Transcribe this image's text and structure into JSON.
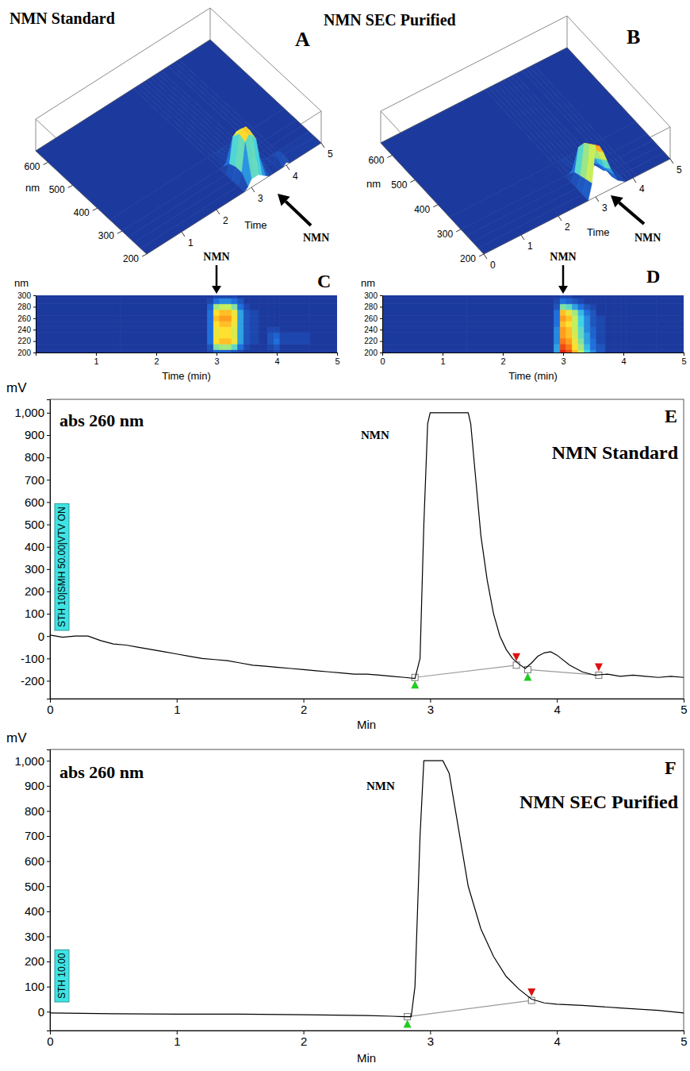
{
  "chart_data": [
    {
      "type": "surface3d",
      "title": "NMN Standard",
      "panel": "A",
      "peak_label": "NMN",
      "x_label": "Time",
      "y_label": "nm",
      "x": [
        0,
        2.8,
        2.9,
        3.0,
        3.1,
        3.2,
        3.3,
        3.4,
        3.5,
        3.6,
        3.8,
        3.9,
        4.0,
        4.1,
        5
      ],
      "y": [
        200,
        225,
        250,
        275,
        300,
        350,
        650
      ],
      "z": [
        [
          0,
          0,
          0.05,
          0.15,
          0.15,
          0.15,
          0.1,
          0.05,
          0,
          0,
          0,
          0,
          0.05,
          0,
          0
        ],
        [
          0,
          0,
          0.2,
          0.7,
          0.8,
          0.75,
          0.65,
          0.3,
          0.1,
          0.05,
          0,
          0.1,
          0.15,
          0.05,
          0
        ],
        [
          0,
          0,
          0.2,
          0.75,
          0.8,
          0.8,
          0.7,
          0.3,
          0.1,
          0.05,
          0,
          0,
          0,
          0,
          0
        ],
        [
          0,
          0,
          0.15,
          0.6,
          0.65,
          0.65,
          0.55,
          0.25,
          0.05,
          0,
          0,
          0,
          0,
          0,
          0
        ],
        [
          0,
          0,
          0,
          0.05,
          0.05,
          0.05,
          0.05,
          0,
          0,
          0,
          0,
          0,
          0,
          0,
          0
        ],
        [
          0,
          0,
          0,
          0,
          0,
          0,
          0,
          0,
          0,
          0,
          0,
          0,
          0,
          0,
          0
        ],
        [
          0,
          0,
          0,
          0,
          0,
          0,
          0,
          0,
          0,
          0,
          0,
          0,
          0,
          0,
          0
        ]
      ],
      "xlim": [
        0,
        5
      ],
      "ylim": [
        200,
        650
      ],
      "zlim": [
        0,
        1
      ],
      "xticks": [
        1,
        2,
        3,
        4,
        5
      ],
      "yticks": [
        200,
        300,
        400,
        500,
        600
      ]
    },
    {
      "type": "surface3d",
      "title": "NMN SEC Purified",
      "panel": "B",
      "peak_label": "NMN",
      "x_label": "Time",
      "y_label": "nm",
      "x": [
        0,
        2.8,
        2.9,
        3.0,
        3.1,
        3.2,
        3.3,
        3.4,
        3.5,
        3.6,
        3.8,
        3.9,
        4.0,
        4.1,
        5
      ],
      "y": [
        200,
        225,
        250,
        275,
        300,
        350,
        650
      ],
      "z": [
        [
          0,
          0,
          0.3,
          1.0,
          0.95,
          0.8,
          0.6,
          0.4,
          0.25,
          0.1,
          0,
          0,
          0,
          0,
          0
        ],
        [
          0,
          0,
          0.25,
          0.9,
          0.85,
          0.7,
          0.5,
          0.3,
          0.2,
          0.05,
          0,
          0,
          0,
          0,
          0
        ],
        [
          0,
          0,
          0.2,
          0.8,
          0.75,
          0.6,
          0.4,
          0.25,
          0.1,
          0.05,
          0,
          0,
          0,
          0,
          0
        ],
        [
          0,
          0,
          0.15,
          0.6,
          0.55,
          0.4,
          0.3,
          0.15,
          0.05,
          0,
          0,
          0,
          0,
          0,
          0
        ],
        [
          0,
          0,
          0,
          0.05,
          0.05,
          0,
          0,
          0,
          0,
          0,
          0,
          0,
          0,
          0,
          0
        ],
        [
          0,
          0,
          0,
          0,
          0,
          0,
          0,
          0,
          0,
          0,
          0,
          0,
          0,
          0,
          0
        ],
        [
          0,
          0,
          0,
          0,
          0,
          0,
          0,
          0,
          0,
          0,
          0,
          0,
          0,
          0,
          0
        ]
      ],
      "xlim": [
        0,
        5
      ],
      "ylim": [
        200,
        650
      ],
      "zlim": [
        0,
        1
      ],
      "xticks": [
        0,
        1,
        2,
        3,
        4,
        5
      ],
      "yticks": [
        200,
        300,
        400,
        500,
        600
      ]
    },
    {
      "type": "heatmap",
      "panel": "C",
      "peak_label": "NMN",
      "x_label": "Time (min)",
      "y_label": "nm",
      "x": [
        0,
        2.8,
        2.9,
        3.0,
        3.1,
        3.2,
        3.3,
        3.4,
        3.5,
        3.6,
        3.8,
        3.9,
        4.0,
        4.1,
        5
      ],
      "y": [
        200,
        210,
        220,
        230,
        240,
        250,
        260,
        270,
        280,
        290,
        300
      ],
      "z": [
        [
          0,
          0,
          0.05,
          0.15,
          0.15,
          0.15,
          0.1,
          0.05,
          0,
          0,
          0,
          0,
          0.05,
          0,
          0
        ],
        [
          0,
          0,
          0.1,
          0.5,
          0.55,
          0.55,
          0.45,
          0.2,
          0.05,
          0,
          0,
          0.05,
          0.1,
          0,
          0
        ],
        [
          0,
          0,
          0.2,
          0.75,
          0.8,
          0.8,
          0.7,
          0.3,
          0.1,
          0.05,
          0,
          0.1,
          0.2,
          0.05,
          0
        ],
        [
          0,
          0,
          0.2,
          0.7,
          0.75,
          0.75,
          0.65,
          0.3,
          0.1,
          0.05,
          0,
          0.1,
          0.15,
          0.05,
          0
        ],
        [
          0,
          0,
          0.2,
          0.7,
          0.75,
          0.75,
          0.65,
          0.3,
          0.1,
          0.05,
          0,
          0.05,
          0.05,
          0,
          0
        ],
        [
          0,
          0,
          0.2,
          0.75,
          0.8,
          0.8,
          0.7,
          0.3,
          0.1,
          0.05,
          0,
          0,
          0,
          0,
          0
        ],
        [
          0,
          0,
          0.2,
          0.8,
          0.85,
          0.85,
          0.75,
          0.3,
          0.1,
          0.05,
          0,
          0,
          0,
          0,
          0
        ],
        [
          0,
          0,
          0.2,
          0.75,
          0.8,
          0.8,
          0.7,
          0.3,
          0.1,
          0.05,
          0,
          0,
          0,
          0,
          0
        ],
        [
          0,
          0,
          0.15,
          0.55,
          0.6,
          0.6,
          0.5,
          0.2,
          0.05,
          0,
          0,
          0,
          0,
          0,
          0
        ],
        [
          0,
          0,
          0.05,
          0.2,
          0.25,
          0.25,
          0.2,
          0.1,
          0,
          0,
          0,
          0,
          0,
          0,
          0
        ],
        [
          0,
          0,
          0,
          0.05,
          0.05,
          0.05,
          0.05,
          0,
          0,
          0,
          0,
          0,
          0,
          0,
          0
        ]
      ],
      "xlim": [
        0,
        5
      ],
      "ylim": [
        200,
        300
      ],
      "zlim": [
        0,
        1
      ],
      "xticks": [
        1,
        2,
        3,
        4,
        5
      ],
      "yticks": [
        200,
        220,
        240,
        260,
        280,
        300
      ]
    },
    {
      "type": "heatmap",
      "panel": "D",
      "peak_label": "NMN",
      "x_label": "Time (min)",
      "y_label": "nm",
      "x": [
        0,
        2.8,
        2.9,
        3.0,
        3.1,
        3.2,
        3.3,
        3.4,
        3.5,
        3.6,
        3.8,
        3.9,
        4.0,
        4.1,
        5
      ],
      "y": [
        200,
        210,
        220,
        230,
        240,
        250,
        260,
        270,
        280,
        290,
        300
      ],
      "z": [
        [
          0,
          0,
          0.3,
          1.0,
          0.95,
          0.8,
          0.6,
          0.4,
          0.25,
          0.1,
          0,
          0,
          0,
          0,
          0
        ],
        [
          0,
          0,
          0.3,
          0.95,
          0.9,
          0.75,
          0.55,
          0.35,
          0.2,
          0.1,
          0,
          0,
          0,
          0,
          0
        ],
        [
          0,
          0,
          0.25,
          0.9,
          0.85,
          0.7,
          0.5,
          0.3,
          0.2,
          0.05,
          0,
          0,
          0,
          0,
          0
        ],
        [
          0,
          0,
          0.25,
          0.85,
          0.8,
          0.65,
          0.45,
          0.3,
          0.15,
          0.05,
          0,
          0,
          0,
          0,
          0
        ],
        [
          0,
          0,
          0.25,
          0.85,
          0.8,
          0.6,
          0.45,
          0.25,
          0.15,
          0.05,
          0,
          0,
          0,
          0,
          0
        ],
        [
          0,
          0,
          0.2,
          0.8,
          0.75,
          0.6,
          0.4,
          0.25,
          0.1,
          0.05,
          0,
          0,
          0,
          0,
          0
        ],
        [
          0,
          0,
          0.2,
          0.85,
          0.8,
          0.6,
          0.4,
          0.25,
          0.1,
          0.05,
          0,
          0,
          0,
          0,
          0
        ],
        [
          0,
          0,
          0.2,
          0.8,
          0.7,
          0.55,
          0.35,
          0.2,
          0.1,
          0,
          0,
          0,
          0,
          0,
          0
        ],
        [
          0,
          0,
          0.1,
          0.5,
          0.45,
          0.3,
          0.2,
          0.1,
          0.05,
          0,
          0,
          0,
          0,
          0,
          0
        ],
        [
          0,
          0,
          0.05,
          0.2,
          0.15,
          0.1,
          0.05,
          0,
          0,
          0,
          0,
          0,
          0,
          0,
          0
        ],
        [
          0,
          0,
          0,
          0.05,
          0.05,
          0,
          0,
          0,
          0,
          0,
          0,
          0,
          0,
          0,
          0
        ]
      ],
      "xlim": [
        0,
        5
      ],
      "ylim": [
        200,
        300
      ],
      "zlim": [
        0,
        1
      ],
      "xticks": [
        0,
        1,
        2,
        3,
        4,
        5
      ],
      "yticks": [
        200,
        220,
        240,
        260,
        280,
        300
      ]
    },
    {
      "type": "line",
      "title": "NMN Standard",
      "panel": "E",
      "subtitle": "abs 260 nm",
      "peak_label": "NMN",
      "x_label": "Min",
      "y_label": "mV",
      "instrument_label": "STH 10|SMH 50.00|VTV ON",
      "color": "#000000",
      "x": [
        0,
        0.1,
        0.2,
        0.3,
        0.4,
        0.5,
        0.6,
        0.7,
        0.8,
        0.9,
        1.0,
        1.1,
        1.2,
        1.3,
        1.4,
        1.5,
        1.6,
        1.7,
        1.8,
        1.9,
        2.0,
        2.1,
        2.2,
        2.3,
        2.4,
        2.5,
        2.6,
        2.7,
        2.8,
        2.88,
        2.92,
        2.95,
        2.98,
        3.0,
        3.1,
        3.2,
        3.3,
        3.32,
        3.36,
        3.4,
        3.45,
        3.5,
        3.55,
        3.6,
        3.65,
        3.7,
        3.75,
        3.8,
        3.85,
        3.9,
        3.95,
        4.0,
        4.1,
        4.2,
        4.3,
        4.4,
        4.5,
        4.6,
        4.7,
        4.8,
        4.9,
        5.0
      ],
      "values": [
        5,
        -5,
        0,
        0,
        -20,
        -35,
        -40,
        -50,
        -60,
        -70,
        -80,
        -90,
        -100,
        -105,
        -110,
        -120,
        -130,
        -135,
        -140,
        -145,
        -150,
        -155,
        -160,
        -165,
        -170,
        -170,
        -175,
        -180,
        -185,
        -190,
        -100,
        500,
        950,
        1000,
        1000,
        1000,
        1000,
        950,
        700,
        450,
        250,
        100,
        0,
        -60,
        -100,
        -125,
        -145,
        -120,
        -90,
        -75,
        -70,
        -85,
        -130,
        -160,
        -175,
        -170,
        -180,
        -175,
        -180,
        -185,
        -180,
        -185
      ],
      "integration": [
        {
          "start": [
            2.88,
            -185
          ],
          "end": [
            3.68,
            -130
          ]
        },
        {
          "start": [
            3.77,
            -150
          ],
          "end": [
            4.33,
            -175
          ]
        }
      ],
      "xlim": [
        0,
        5
      ],
      "ylim": [
        -280,
        1060
      ],
      "xticks": [
        0,
        1,
        2,
        3,
        4,
        5
      ],
      "yticks": [
        -200,
        -100,
        0,
        100,
        200,
        300,
        400,
        500,
        600,
        700,
        800,
        900,
        {
          "value": 1000,
          "label": "1,000"
        }
      ]
    },
    {
      "type": "line",
      "title": "NMN SEC Purified",
      "panel": "F",
      "subtitle": "abs 260 nm",
      "peak_label": "NMN",
      "x_label": "Min",
      "y_label": "mV",
      "instrument_label": "STH 10.00",
      "color": "#000000",
      "x": [
        0,
        0.5,
        1.0,
        1.5,
        2.0,
        2.5,
        2.7,
        2.8,
        2.85,
        2.88,
        2.92,
        2.95,
        3.0,
        3.1,
        3.15,
        3.2,
        3.25,
        3.3,
        3.4,
        3.5,
        3.6,
        3.7,
        3.8,
        3.9,
        4.0,
        4.2,
        4.5,
        4.8,
        5.0
      ],
      "values": [
        -5,
        -8,
        -10,
        -10,
        -12,
        -15,
        -18,
        -20,
        -20,
        100,
        700,
        1000,
        1000,
        1000,
        950,
        800,
        650,
        500,
        330,
        220,
        140,
        90,
        50,
        35,
        30,
        25,
        15,
        5,
        -5
      ],
      "integration": [
        {
          "start": [
            2.82,
            -20
          ],
          "end": [
            3.8,
            45
          ]
        }
      ],
      "xlim": [
        0,
        5
      ],
      "ylim": [
        -75,
        1045
      ],
      "xticks": [
        0,
        1,
        2,
        3,
        4,
        5
      ],
      "yticks": [
        0,
        100,
        200,
        300,
        400,
        500,
        600,
        700,
        800,
        900,
        {
          "value": 1000,
          "label": "1,000"
        }
      ]
    }
  ]
}
